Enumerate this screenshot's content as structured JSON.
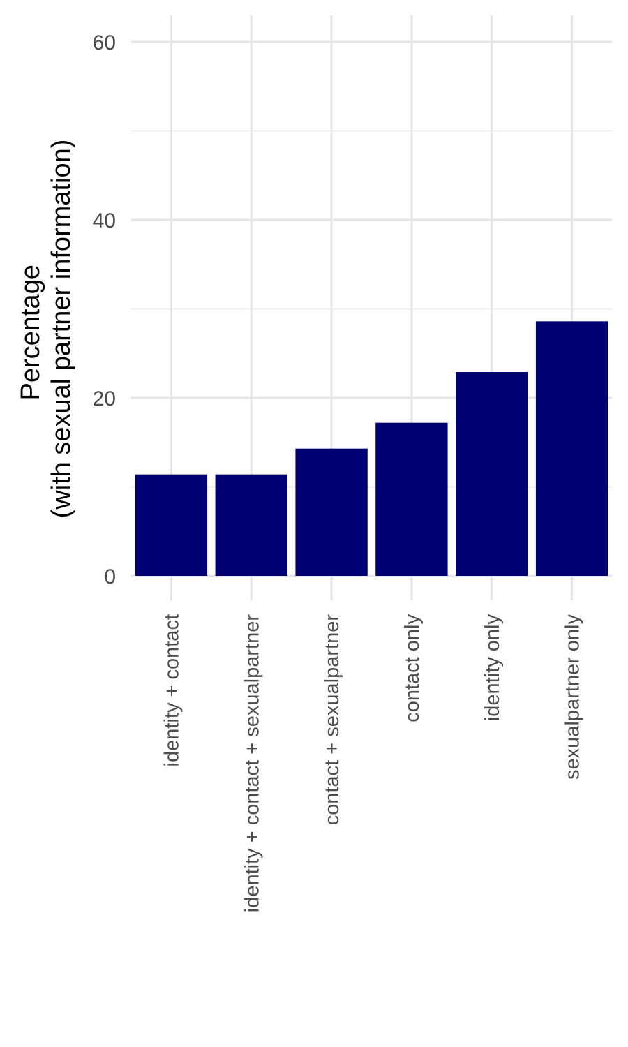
{
  "chart_data": {
    "type": "bar",
    "categories": [
      "identity + contact",
      "identity + contact + sexualpartner",
      "contact + sexualpartner",
      "contact only",
      "identity only",
      "sexualpartner only"
    ],
    "values": [
      11.4,
      11.4,
      14.3,
      17.2,
      22.9,
      28.6
    ],
    "ylabel_lines": [
      "Percentage",
      "(with sexual partner information)"
    ],
    "xlabel": "",
    "ylim": [
      0,
      60
    ],
    "yticks": [
      "0",
      "20",
      "40",
      "60"
    ],
    "grid": true,
    "bar_color": "#000075",
    "grid_color": "#e6e6e6"
  }
}
